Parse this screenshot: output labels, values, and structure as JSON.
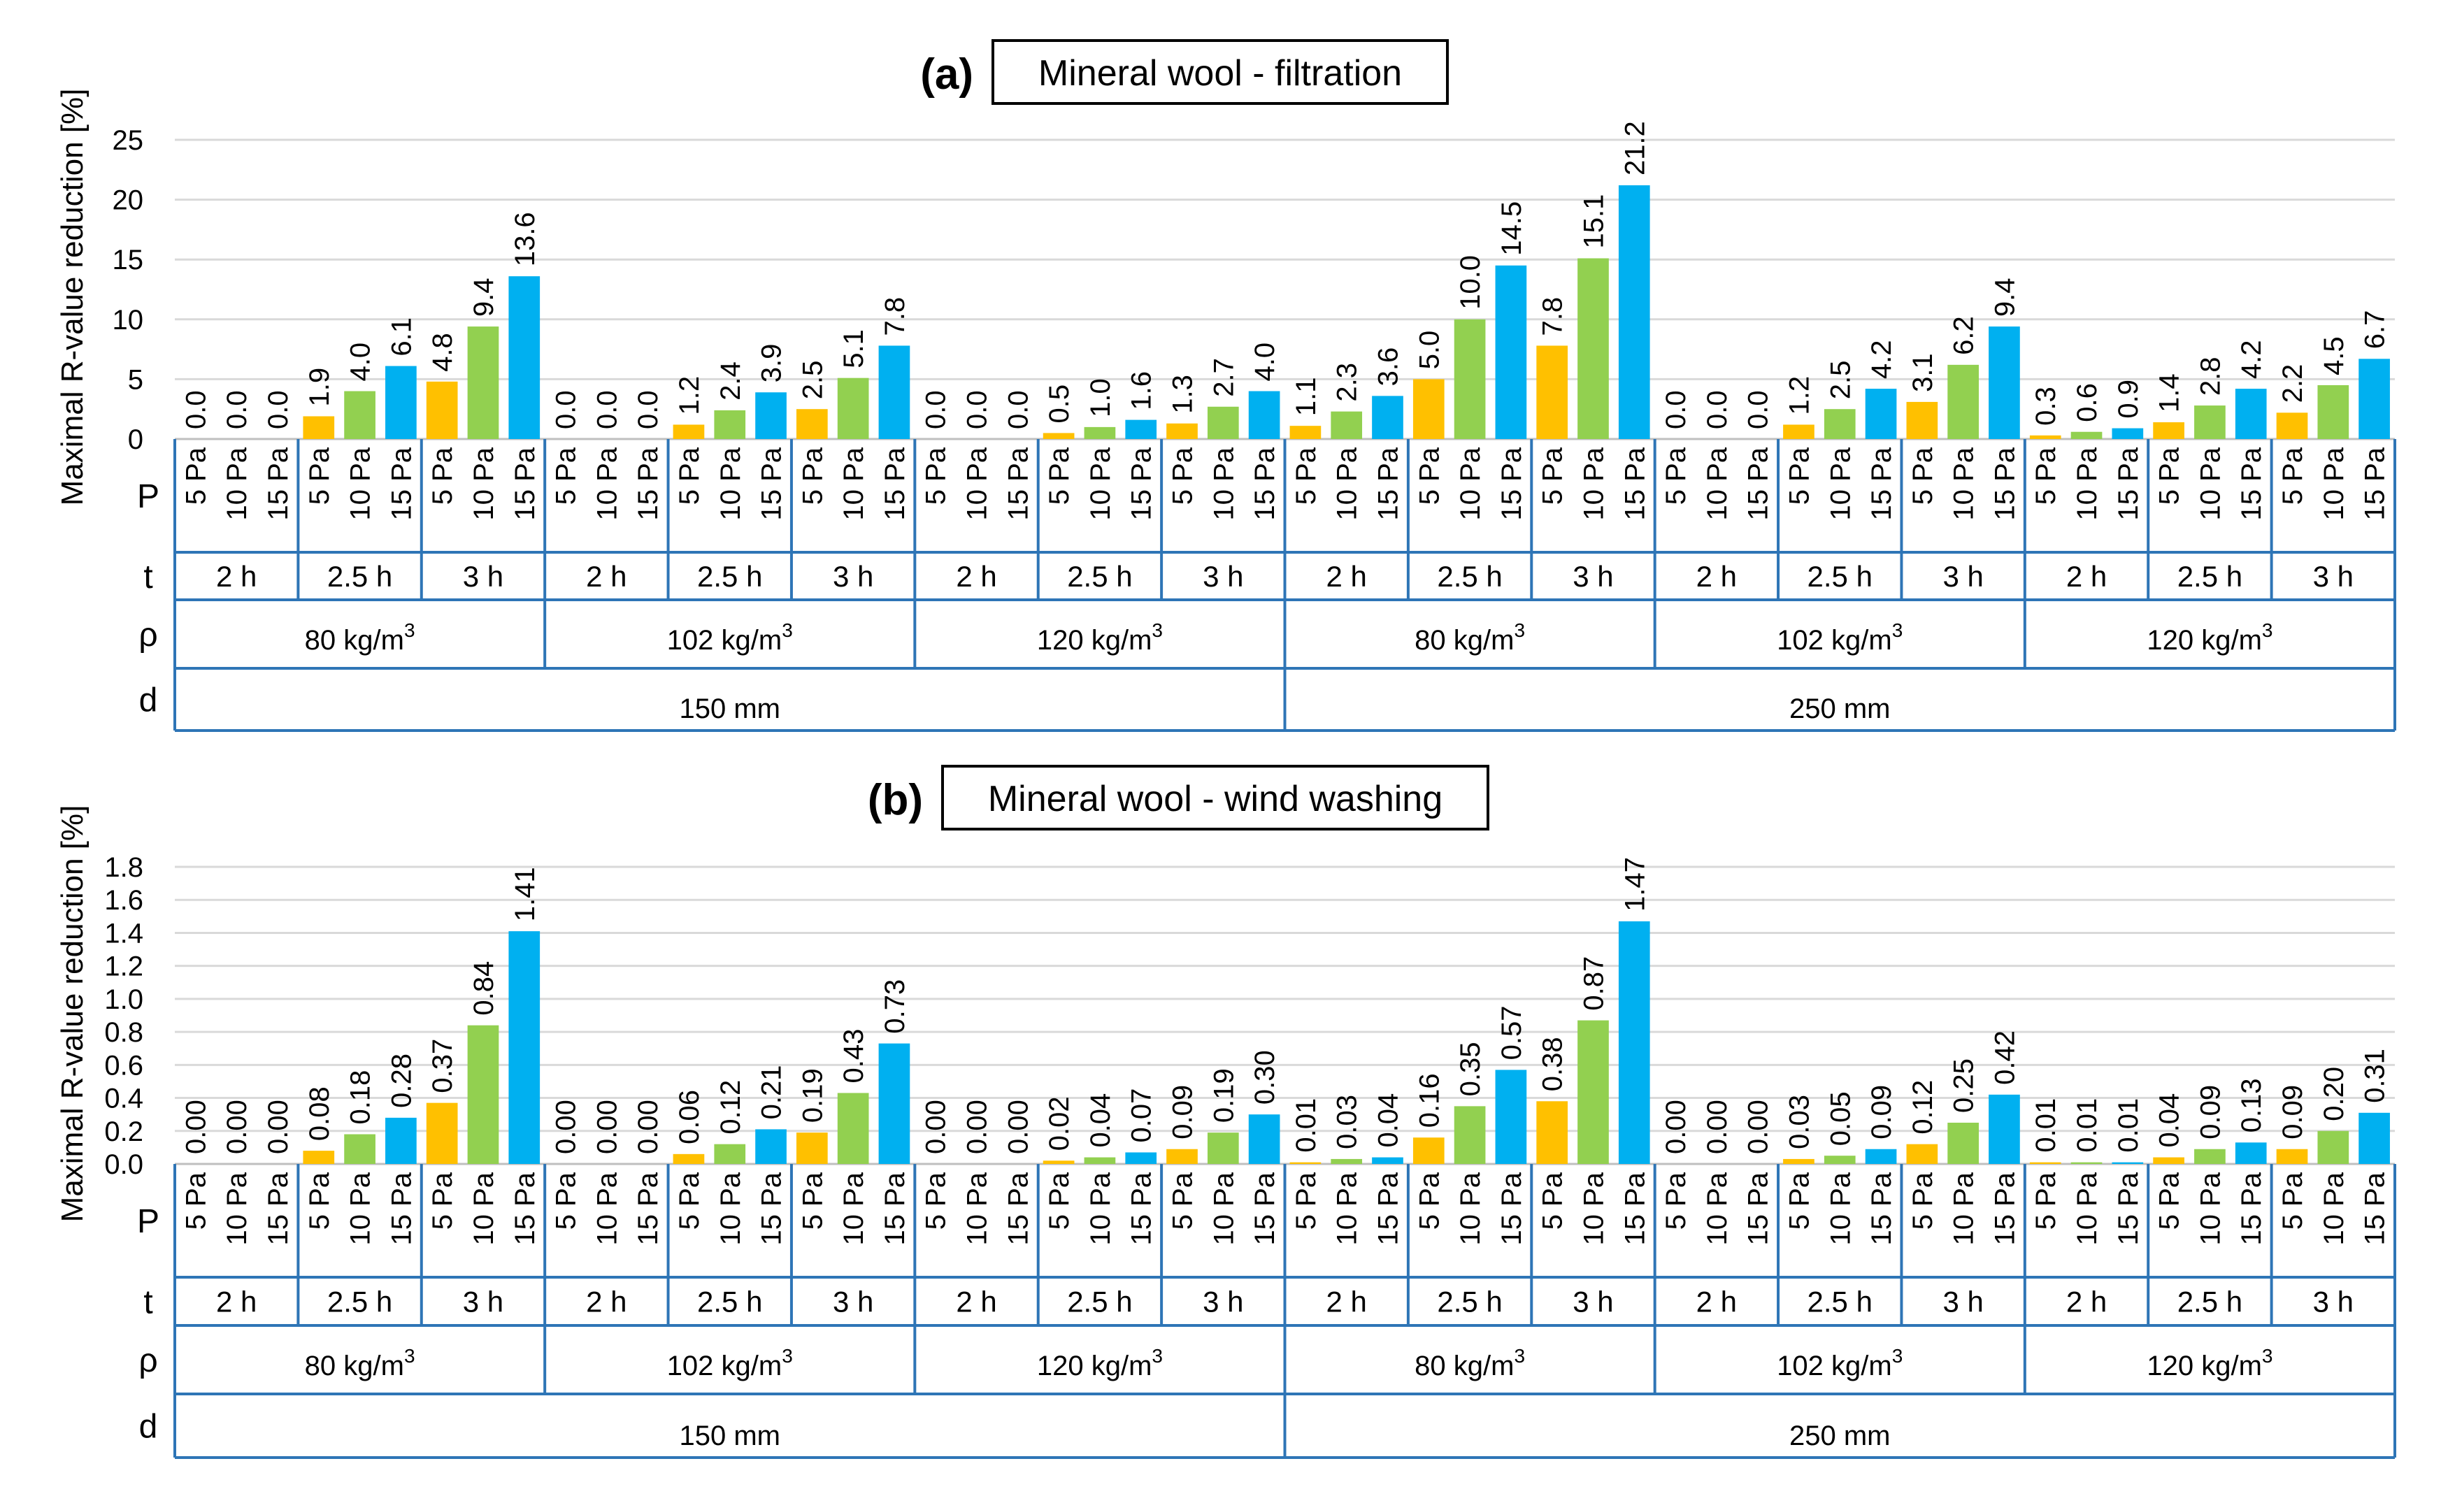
{
  "colors": {
    "p5": "#FFC000",
    "p10": "#92D050",
    "p15": "#00B0F0",
    "table_border": "#2E75B6",
    "grid": "#D9D9D9"
  },
  "row_labels": {
    "p": "P",
    "t": "t",
    "rho": "ρ",
    "d": "d"
  },
  "pressures": [
    "5 Pa",
    "10 Pa",
    "15 Pa"
  ],
  "times": [
    "2 h",
    "2.5 h",
    "3 h"
  ],
  "densities": [
    {
      "text": "80 kg/m",
      "sup": "3"
    },
    {
      "text": "102 kg/m",
      "sup": "3"
    },
    {
      "text": "120 kg/m",
      "sup": "3"
    }
  ],
  "thicknesses": [
    "150 mm",
    "250 mm"
  ],
  "chart_data": [
    {
      "type": "bar",
      "panel": "(a)",
      "title": "Mineral wool - filtration",
      "ylabel": "Maximal R-value reduction [%]",
      "xlabel": "",
      "ylim": [
        0,
        25
      ],
      "yticks": [
        "0",
        "5",
        "10",
        "15",
        "20",
        "25"
      ],
      "categories_levels": [
        "P",
        "t",
        "ρ",
        "d"
      ],
      "values": [
        0.0,
        0.0,
        0.0,
        1.9,
        4.0,
        6.1,
        4.8,
        9.4,
        13.6,
        0.0,
        0.0,
        0.0,
        1.2,
        2.4,
        3.9,
        2.5,
        5.1,
        7.8,
        0.0,
        0.0,
        0.0,
        0.5,
        1.0,
        1.6,
        1.3,
        2.7,
        4.0,
        1.1,
        2.3,
        3.6,
        5.0,
        10.0,
        14.5,
        7.8,
        15.1,
        21.2,
        0.0,
        0.0,
        0.0,
        1.2,
        2.5,
        4.2,
        3.1,
        6.2,
        9.4,
        0.3,
        0.6,
        0.9,
        1.4,
        2.8,
        4.2,
        2.2,
        4.5,
        6.7
      ],
      "labels": [
        "0.0",
        "0.0",
        "0.0",
        "1.9",
        "4.0",
        "6.1",
        "4.8",
        "9.4",
        "13.6",
        "0.0",
        "0.0",
        "0.0",
        "1.2",
        "2.4",
        "3.9",
        "2.5",
        "5.1",
        "7.8",
        "0.0",
        "0.0",
        "0.0",
        "0.5",
        "1.0",
        "1.6",
        "1.3",
        "2.7",
        "4.0",
        "1.1",
        "2.3",
        "3.6",
        "5.0",
        "10.0",
        "14.5",
        "7.8",
        "15.1",
        "21.2",
        "0.0",
        "0.0",
        "0.0",
        "1.2",
        "2.5",
        "4.2",
        "3.1",
        "6.2",
        "9.4",
        "0.3",
        "0.6",
        "0.9",
        "1.4",
        "2.8",
        "4.2",
        "2.2",
        "4.5",
        "6.7"
      ]
    },
    {
      "type": "bar",
      "panel": "(b)",
      "title": "Mineral wool - wind washing",
      "ylabel": "Maximal R-value reduction [%]",
      "xlabel": "",
      "ylim": [
        0,
        1.8
      ],
      "yticks": [
        "0.0",
        "0.2",
        "0.4",
        "0.6",
        "0.8",
        "1.0",
        "1.2",
        "1.4",
        "1.6",
        "1.8"
      ],
      "categories_levels": [
        "P",
        "t",
        "ρ",
        "d"
      ],
      "values": [
        0.0,
        0.0,
        0.0,
        0.08,
        0.18,
        0.28,
        0.37,
        0.84,
        1.41,
        0.0,
        0.0,
        0.0,
        0.06,
        0.12,
        0.21,
        0.19,
        0.43,
        0.73,
        0.0,
        0.0,
        0.0,
        0.02,
        0.04,
        0.07,
        0.09,
        0.19,
        0.3,
        0.01,
        0.03,
        0.04,
        0.16,
        0.35,
        0.57,
        0.38,
        0.87,
        1.47,
        0.0,
        0.0,
        0.0,
        0.03,
        0.05,
        0.09,
        0.12,
        0.25,
        0.42,
        0.01,
        0.01,
        0.01,
        0.04,
        0.09,
        0.13,
        0.09,
        0.2,
        0.31
      ],
      "labels": [
        "0.00",
        "0.00",
        "0.00",
        "0.08",
        "0.18",
        "0.28",
        "0.37",
        "0.84",
        "1.41",
        "0.00",
        "0.00",
        "0.00",
        "0.06",
        "0.12",
        "0.21",
        "0.19",
        "0.43",
        "0.73",
        "0.00",
        "0.00",
        "0.00",
        "0.02",
        "0.04",
        "0.07",
        "0.09",
        "0.19",
        "0.30",
        "0.01",
        "0.03",
        "0.04",
        "0.16",
        "0.35",
        "0.57",
        "0.38",
        "0.87",
        "1.47",
        "0.00",
        "0.00",
        "0.00",
        "0.03",
        "0.05",
        "0.09",
        "0.12",
        "0.25",
        "0.42",
        "0.01",
        "0.01",
        "0.01",
        "0.04",
        "0.09",
        "0.13",
        "0.09",
        "0.20",
        "0.31"
      ]
    }
  ]
}
